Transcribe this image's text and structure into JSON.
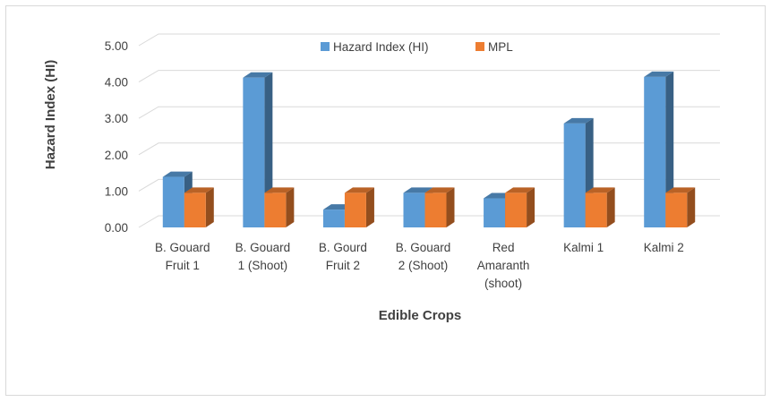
{
  "chart_data": {
    "type": "bar",
    "title": "",
    "xlabel": "Edible Crops",
    "ylabel": "Hazard Index (HI)",
    "ylim": [
      0,
      5
    ],
    "yticks": [
      "0.00",
      "1.00",
      "2.00",
      "3.00",
      "4.00",
      "5.00"
    ],
    "grid": true,
    "legend_position": "top",
    "categories": [
      [
        "B. Gouard",
        "Fruit 1"
      ],
      [
        "B. Gouard",
        "1 (Shoot)"
      ],
      [
        "B. Gourd",
        "Fruit 2"
      ],
      [
        "B. Gouard",
        "2 (Shoot)"
      ],
      [
        "Red",
        "Amaranth",
        "(shoot)"
      ],
      [
        "Kalmi 1"
      ],
      [
        "Kalmi 2"
      ]
    ],
    "series": [
      {
        "name": "Hazard Index (HI)",
        "color": "#5B9BD5",
        "values": [
          1.39,
          4.12,
          0.49,
          0.95,
          0.8,
          2.86,
          4.14
        ]
      },
      {
        "name": "MPL",
        "color": "#ED7D31",
        "values": [
          0.95,
          0.95,
          0.95,
          0.95,
          0.95,
          0.95,
          0.95
        ]
      }
    ]
  }
}
